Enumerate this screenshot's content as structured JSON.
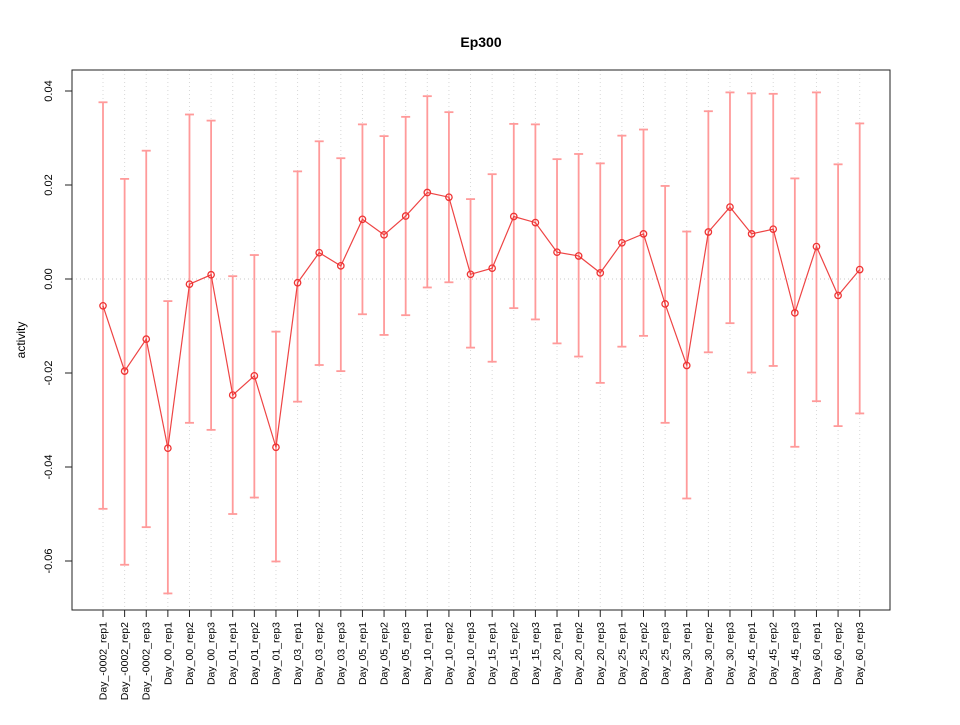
{
  "page": {
    "title": "Ep300"
  },
  "chart_data": {
    "type": "line",
    "title": "Ep300",
    "xlabel": "",
    "ylabel": "activity",
    "grid": "vertical-dotted",
    "zero_line": true,
    "legend": null,
    "categories": [
      "Day_-0002_rep1",
      "Day_-0002_rep2",
      "Day_-0002_rep3",
      "Day_00_rep1",
      "Day_00_rep2",
      "Day_00_rep3",
      "Day_01_rep1",
      "Day_01_rep2",
      "Day_01_rep3",
      "Day_03_rep1",
      "Day_03_rep2",
      "Day_03_rep3",
      "Day_05_rep1",
      "Day_05_rep2",
      "Day_05_rep3",
      "Day_10_rep1",
      "Day_10_rep2",
      "Day_10_rep3",
      "Day_15_rep1",
      "Day_15_rep2",
      "Day_15_rep3",
      "Day_20_rep1",
      "Day_20_rep2",
      "Day_20_rep3",
      "Day_25_rep1",
      "Day_25_rep2",
      "Day_25_rep3",
      "Day_30_rep1",
      "Day_30_rep2",
      "Day_30_rep3",
      "Day_45_rep1",
      "Day_45_rep2",
      "Day_45_rep3",
      "Day_60_rep1",
      "Day_60_rep2",
      "Day_60_rep3"
    ],
    "series": [
      {
        "name": "activity",
        "values": [
          -0.0057,
          -0.0196,
          -0.0128,
          -0.036,
          -0.0011,
          0.0009,
          -0.0247,
          -0.0206,
          -0.0358,
          -0.0008,
          0.0056,
          0.0028,
          0.0127,
          0.0094,
          0.0134,
          0.0184,
          0.0174,
          0.001,
          0.0023,
          0.0133,
          0.012,
          0.0057,
          0.0049,
          0.0013,
          0.0077,
          0.0096,
          -0.0053,
          -0.0184,
          0.01,
          0.0153,
          0.0096,
          0.0106,
          -0.0072,
          0.0069,
          -0.0035,
          0.002
        ],
        "upper": [
          0.0376,
          0.0213,
          0.0273,
          -0.0047,
          0.035,
          0.0337,
          0.0006,
          0.0051,
          -0.0112,
          0.0229,
          0.0293,
          0.0257,
          0.0329,
          0.0304,
          0.0345,
          0.0389,
          0.0355,
          0.017,
          0.0223,
          0.033,
          0.0329,
          0.0255,
          0.0266,
          0.0246,
          0.0305,
          0.0318,
          0.0198,
          0.0101,
          0.0357,
          0.0397,
          0.0395,
          0.0394,
          0.0214,
          0.0397,
          0.0244,
          0.0331
        ],
        "lower": [
          -0.0489,
          -0.0608,
          -0.0528,
          -0.0669,
          -0.0306,
          -0.0321,
          -0.05,
          -0.0465,
          -0.0601,
          -0.0261,
          -0.0183,
          -0.0196,
          -0.0075,
          -0.0119,
          -0.0077,
          -0.0018,
          -0.0007,
          -0.0146,
          -0.0176,
          -0.0062,
          -0.0086,
          -0.0137,
          -0.0165,
          -0.0221,
          -0.0144,
          -0.0121,
          -0.0306,
          -0.0467,
          -0.0156,
          -0.0094,
          -0.0199,
          -0.0185,
          -0.0357,
          -0.026,
          -0.0313,
          -0.0286
        ]
      }
    ],
    "yticks": [
      0.04,
      0.02,
      0.0,
      -0.02,
      -0.04,
      -0.06
    ],
    "ytick_labels": [
      "0.04",
      "0.02",
      "0.00",
      "-0.02",
      "-0.04",
      "-0.06"
    ],
    "ylim": [
      -0.07,
      0.0425
    ],
    "colors": {
      "point": "#ee3333",
      "line": "#ee4444",
      "error_bar": "#ff9a9a",
      "grid": "#d8d8d8",
      "zero_line": "#c8c8c8",
      "axis": "#222222",
      "text": "#000000"
    }
  }
}
